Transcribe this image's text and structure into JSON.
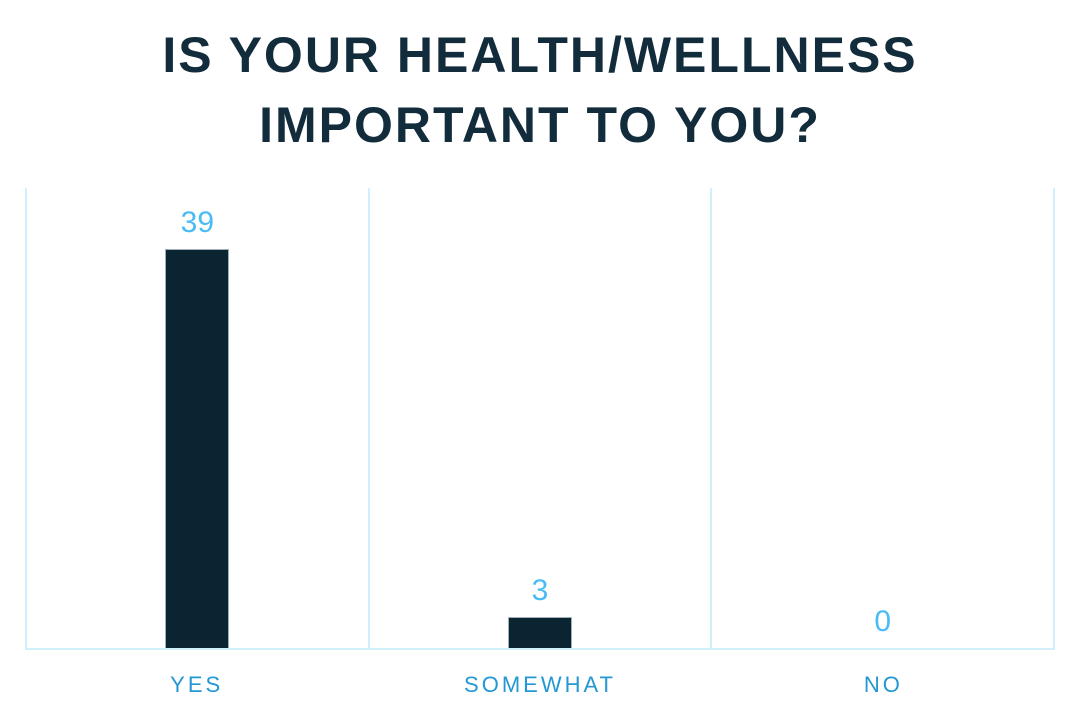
{
  "header": {
    "title_lines": [
      "IS YOUR HEALTH/WELLNESS",
      "IMPORTANT TO YOU?"
    ]
  },
  "chart_data": {
    "type": "bar",
    "title": "IS YOUR HEALTH/WELLNESS IMPORTANT TO YOU?",
    "categories": [
      "YES",
      "SOMEWHAT",
      "NO"
    ],
    "values": [
      39,
      3,
      0
    ],
    "xlabel": "",
    "ylabel": "",
    "ylim": [
      0,
      45
    ],
    "grid": "vertical-column-dividers-and-frame",
    "legend": "none",
    "colors": {
      "bar": "#0a2431",
      "bar_border": "#9db0ba",
      "value_label": "#49bbf5",
      "category_label": "#2398d3",
      "gridline": "#d2effc",
      "title": "#122c3c",
      "background": "#ffffff"
    }
  }
}
